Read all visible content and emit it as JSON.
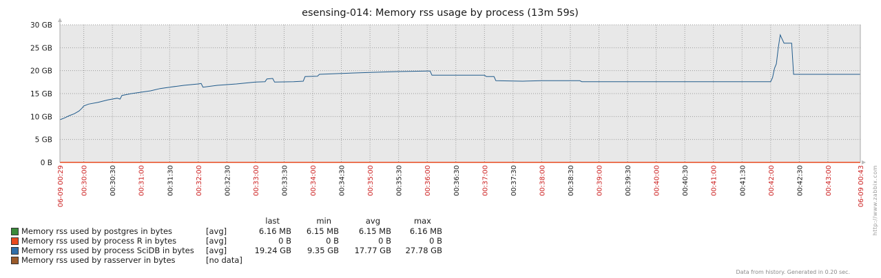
{
  "chart_data": {
    "type": "line",
    "title": "esensing-014: Memory rss usage by process (13m 59s)",
    "xlabel": "",
    "ylabel": "",
    "ylim": [
      0,
      30
    ],
    "y_unit": "GB",
    "y_ticks": [
      "0 B",
      "5 GB",
      "10 GB",
      "15 GB",
      "20 GB",
      "25 GB",
      "30 GB"
    ],
    "y_tick_values": [
      0,
      5,
      10,
      15,
      20,
      25,
      30
    ],
    "x_range": [
      "00:29:35",
      "00:43:34"
    ],
    "x_tick_labels": [
      {
        "t": "00:29:35",
        "label": "06-09 00:29",
        "major": true
      },
      {
        "t": "00:30:00",
        "label": "00:30:00",
        "major": true
      },
      {
        "t": "00:30:30",
        "label": "00:30:30",
        "major": false
      },
      {
        "t": "00:31:00",
        "label": "00:31:00",
        "major": true
      },
      {
        "t": "00:31:30",
        "label": "00:31:30",
        "major": false
      },
      {
        "t": "00:32:00",
        "label": "00:32:00",
        "major": true
      },
      {
        "t": "00:32:30",
        "label": "00:32:30",
        "major": false
      },
      {
        "t": "00:33:00",
        "label": "00:33:00",
        "major": true
      },
      {
        "t": "00:33:30",
        "label": "00:33:30",
        "major": false
      },
      {
        "t": "00:34:00",
        "label": "00:34:00",
        "major": true
      },
      {
        "t": "00:34:30",
        "label": "00:34:30",
        "major": false
      },
      {
        "t": "00:35:00",
        "label": "00:35:00",
        "major": true
      },
      {
        "t": "00:35:30",
        "label": "00:35:30",
        "major": false
      },
      {
        "t": "00:36:00",
        "label": "00:36:00",
        "major": true
      },
      {
        "t": "00:36:30",
        "label": "00:36:30",
        "major": false
      },
      {
        "t": "00:37:00",
        "label": "00:37:00",
        "major": true
      },
      {
        "t": "00:37:30",
        "label": "00:37:30",
        "major": false
      },
      {
        "t": "00:38:00",
        "label": "00:38:00",
        "major": true
      },
      {
        "t": "00:38:30",
        "label": "00:38:30",
        "major": false
      },
      {
        "t": "00:39:00",
        "label": "00:39:00",
        "major": true
      },
      {
        "t": "00:39:30",
        "label": "00:39:30",
        "major": false
      },
      {
        "t": "00:40:00",
        "label": "00:40:00",
        "major": true
      },
      {
        "t": "00:40:30",
        "label": "00:40:30",
        "major": false
      },
      {
        "t": "00:41:00",
        "label": "00:41:00",
        "major": true
      },
      {
        "t": "00:41:30",
        "label": "00:41:30",
        "major": false
      },
      {
        "t": "00:42:00",
        "label": "00:42:00",
        "major": true
      },
      {
        "t": "00:42:30",
        "label": "00:42:30",
        "major": false
      },
      {
        "t": "00:43:00",
        "label": "00:43:00",
        "major": true
      },
      {
        "t": "00:43:34",
        "label": "06-09 00:43",
        "major": true
      }
    ],
    "grid": true,
    "legend_position": "bottom-left",
    "series": [
      {
        "name": "Memory rss used by process SciDB in bytes",
        "color": "#1f5a8b",
        "points": [
          [
            "00:29:35",
            9.3
          ],
          [
            "00:29:40",
            9.7
          ],
          [
            "00:29:45",
            10.2
          ],
          [
            "00:29:50",
            10.6
          ],
          [
            "00:29:55",
            11.2
          ],
          [
            "00:29:58",
            11.8
          ],
          [
            "00:30:00",
            12.3
          ],
          [
            "00:30:05",
            12.7
          ],
          [
            "00:30:15",
            13.1
          ],
          [
            "00:30:25",
            13.6
          ],
          [
            "00:30:35",
            14.0
          ],
          [
            "00:30:38",
            13.8
          ],
          [
            "00:30:40",
            14.6
          ],
          [
            "00:30:50",
            15.0
          ],
          [
            "00:31:00",
            15.3
          ],
          [
            "00:31:10",
            15.6
          ],
          [
            "00:31:20",
            16.1
          ],
          [
            "00:31:30",
            16.4
          ],
          [
            "00:31:45",
            16.8
          ],
          [
            "00:32:00",
            17.1
          ],
          [
            "00:32:03",
            17.2
          ],
          [
            "00:32:05",
            16.4
          ],
          [
            "00:32:20",
            16.8
          ],
          [
            "00:32:40",
            17.1
          ],
          [
            "00:33:00",
            17.5
          ],
          [
            "00:33:10",
            17.6
          ],
          [
            "00:33:12",
            18.2
          ],
          [
            "00:33:18",
            18.3
          ],
          [
            "00:33:20",
            17.5
          ],
          [
            "00:33:40",
            17.6
          ],
          [
            "00:33:50",
            17.7
          ],
          [
            "00:33:52",
            18.7
          ],
          [
            "00:34:05",
            18.8
          ],
          [
            "00:34:07",
            19.2
          ],
          [
            "00:34:30",
            19.4
          ],
          [
            "00:35:00",
            19.6
          ],
          [
            "00:35:30",
            19.8
          ],
          [
            "00:36:00",
            19.9
          ],
          [
            "00:36:03",
            19.9
          ],
          [
            "00:36:05",
            19.0
          ],
          [
            "00:37:00",
            19.0
          ],
          [
            "00:37:02",
            18.7
          ],
          [
            "00:37:10",
            18.7
          ],
          [
            "00:37:12",
            17.8
          ],
          [
            "00:37:40",
            17.7
          ],
          [
            "00:38:00",
            17.8
          ],
          [
            "00:38:40",
            17.8
          ],
          [
            "00:38:42",
            17.6
          ],
          [
            "00:42:00",
            17.6
          ],
          [
            "00:42:02",
            18.5
          ],
          [
            "00:42:04",
            20.5
          ],
          [
            "00:42:06",
            21.5
          ],
          [
            "00:42:08",
            25.0
          ],
          [
            "00:42:10",
            27.8
          ],
          [
            "00:42:12",
            26.9
          ],
          [
            "00:42:14",
            26.0
          ],
          [
            "00:42:22",
            26.0
          ],
          [
            "00:42:24",
            19.2
          ],
          [
            "00:43:34",
            19.2
          ]
        ]
      },
      {
        "name": "Memory rss used by process R in bytes",
        "color": "#e8491d",
        "points": [
          [
            "00:29:35",
            0
          ],
          [
            "00:43:34",
            0
          ]
        ]
      }
    ]
  },
  "legend": {
    "headers": {
      "last": "last",
      "min": "min",
      "avg": "avg",
      "max": "max"
    },
    "items": [
      {
        "name": "Memory rss used by postgres in bytes",
        "color": "#3a8a3a",
        "func": "[avg]",
        "last": "6.16 MB",
        "min": "6.15 MB",
        "avg": "6.15 MB",
        "max": "6.16 MB"
      },
      {
        "name": "Memory rss used by process R in bytes",
        "color": "#e8491d",
        "func": "[avg]",
        "last": "0 B",
        "min": "0 B",
        "avg": "0 B",
        "max": "0 B"
      },
      {
        "name": "Memory rss used by process SciDB in bytes",
        "color": "#2f6ea8",
        "func": "[avg]",
        "last": "19.24 GB",
        "min": "9.35 GB",
        "avg": "17.77 GB",
        "max": "27.78 GB"
      },
      {
        "name": "Memory rss used by rasserver in bytes",
        "color": "#9a5a2a",
        "func": "[no data]",
        "last": "",
        "min": "",
        "avg": "",
        "max": ""
      }
    ]
  },
  "footer": "Data from history. Generated in 0.20 sec.",
  "side_link": "http://www.zabbix.com"
}
